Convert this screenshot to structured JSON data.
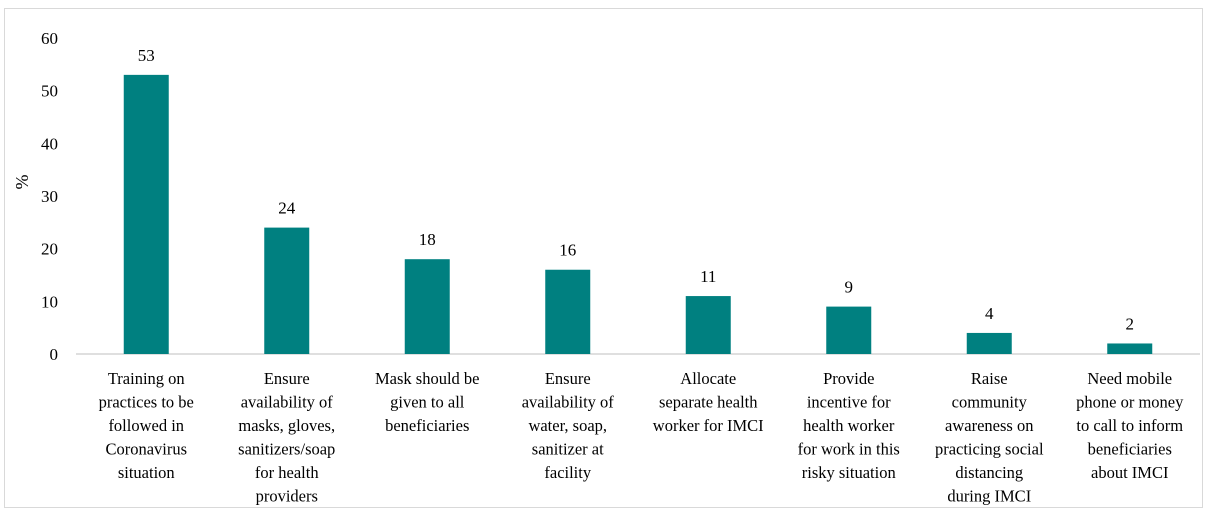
{
  "chart_data": {
    "type": "bar",
    "categories": [
      [
        "Training on",
        "practices to be",
        "followed in",
        "Coronavirus",
        "situation"
      ],
      [
        "Ensure",
        "availability of",
        "masks, gloves,",
        "sanitizers/soap",
        "for health",
        "providers"
      ],
      [
        "Mask should be",
        "given to all",
        "beneficiaries"
      ],
      [
        "Ensure",
        "availability of",
        "water, soap,",
        "sanitizer at",
        "facility"
      ],
      [
        "Allocate",
        "separate health",
        "worker for IMCI"
      ],
      [
        "Provide",
        "incentive for",
        "health worker",
        "for work in this",
        "risky situation"
      ],
      [
        "Raise",
        "community",
        "awareness on",
        "practicing social",
        "distancing",
        "during IMCI"
      ],
      [
        "Need mobile",
        "phone or money",
        "to call to inform",
        "beneficiaries",
        "about IMCI"
      ]
    ],
    "values": [
      53,
      24,
      18,
      16,
      11,
      9,
      4,
      2
    ],
    "data_labels": [
      "53",
      "24",
      "18",
      "16",
      "11",
      "9",
      "4",
      "2"
    ],
    "ylabel": "%",
    "ylim": [
      0,
      60
    ],
    "yticks": [
      0,
      10,
      20,
      30,
      40,
      50,
      60
    ],
    "ytick_labels": [
      "0",
      "10",
      "20",
      "30",
      "40",
      "50",
      "60"
    ],
    "grid": false,
    "bar_color": "#008080",
    "axis_color": "#bfbfbf"
  }
}
